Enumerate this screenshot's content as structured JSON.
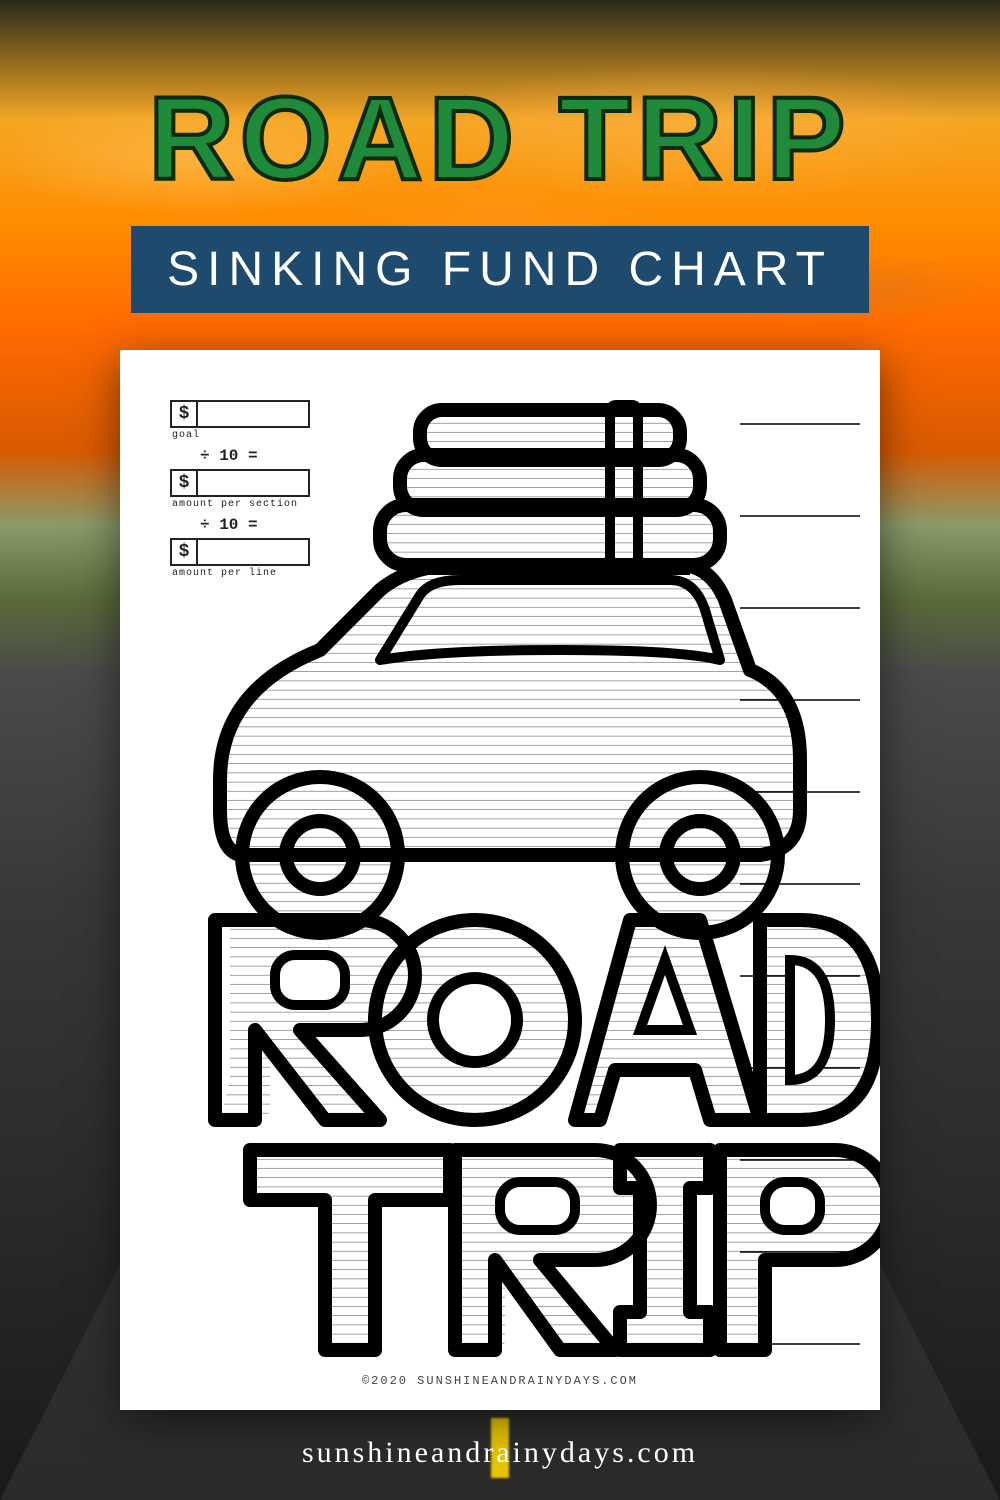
{
  "header": {
    "title": "ROAD TRIP",
    "title_color": "#1e8a3a",
    "title_stroke": "#0a2a12",
    "title_fontsize": 118,
    "subtitle": "SINKING FUND CHART",
    "subtitle_bg": "#1e4a6e",
    "subtitle_color": "#ffffff",
    "subtitle_fontsize": 48
  },
  "calculator": {
    "currency_symbol": "$",
    "rows": [
      {
        "label": "goal"
      },
      {
        "op": "÷ 10 ="
      },
      {
        "label": "amount per section"
      },
      {
        "op": "÷ 10 ="
      },
      {
        "label": "amount per line"
      }
    ]
  },
  "chart": {
    "type": "coloring-tracker",
    "sections": 10,
    "lines_per_section": 10,
    "section_guide_stroke": "#000000",
    "fine_line_stroke": "#555555",
    "outline_stroke": "#000000",
    "outline_width": 14,
    "background": "#ffffff",
    "section_ticks_y": [
      74,
      166,
      258,
      350,
      442,
      534,
      626,
      718,
      810,
      902,
      994
    ],
    "section_ticks_x_start": 620,
    "section_ticks_x_end": 740,
    "big_text_top": "ROAD",
    "big_text_bottom": "TRIP"
  },
  "copyright": "©2020 SUNSHINEANDRAINYDAYS.COM",
  "footer_url": "sunshineandrainydays.com",
  "colors": {
    "sky_top": "#2a2a1a",
    "sky_orange": "#ff8c00",
    "road": "#3a3a3a",
    "lane_mark": "#e8c400"
  }
}
